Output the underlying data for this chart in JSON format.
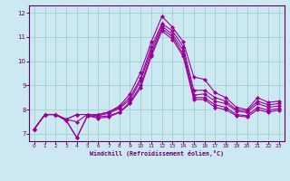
{
  "xlabel": "Windchill (Refroidissement éolien,°C)",
  "bg_color": "#cce8f0",
  "line_color": "#990099",
  "grid_color": "#99cccc",
  "axis_color": "#660066",
  "xlim": [
    -0.5,
    23.5
  ],
  "ylim": [
    6.7,
    12.3
  ],
  "xticks": [
    0,
    1,
    2,
    3,
    4,
    5,
    6,
    7,
    8,
    9,
    10,
    11,
    12,
    13,
    14,
    15,
    16,
    17,
    18,
    19,
    20,
    21,
    22,
    23
  ],
  "yticks": [
    7,
    8,
    9,
    10,
    11,
    12
  ],
  "series": [
    [
      7.2,
      7.8,
      7.8,
      7.6,
      7.5,
      7.8,
      7.8,
      7.9,
      8.15,
      8.65,
      9.55,
      10.8,
      11.85,
      11.4,
      10.8,
      9.35,
      9.25,
      8.7,
      8.5,
      8.1,
      8.0,
      8.5,
      8.3,
      8.35
    ],
    [
      7.2,
      7.8,
      7.8,
      7.6,
      7.8,
      7.8,
      7.8,
      7.9,
      8.1,
      8.5,
      9.3,
      10.6,
      11.55,
      11.25,
      10.6,
      8.8,
      8.8,
      8.5,
      8.35,
      8.0,
      7.95,
      8.35,
      8.2,
      8.25
    ],
    [
      7.2,
      7.8,
      7.8,
      7.6,
      7.8,
      7.8,
      7.75,
      7.85,
      8.05,
      8.4,
      9.2,
      10.45,
      11.45,
      11.1,
      10.45,
      8.6,
      8.65,
      8.35,
      8.25,
      7.95,
      7.88,
      8.25,
      8.1,
      8.15
    ],
    [
      7.2,
      7.8,
      7.8,
      7.55,
      6.85,
      7.75,
      7.7,
      7.75,
      7.9,
      8.3,
      9.0,
      10.3,
      11.35,
      11.0,
      10.3,
      8.5,
      8.5,
      8.2,
      8.1,
      7.8,
      7.75,
      8.1,
      7.98,
      8.05
    ],
    [
      7.2,
      7.8,
      7.8,
      7.55,
      6.85,
      7.75,
      7.65,
      7.7,
      7.88,
      8.25,
      8.9,
      10.2,
      11.25,
      10.9,
      10.2,
      8.42,
      8.42,
      8.1,
      8.0,
      7.75,
      7.7,
      8.0,
      7.9,
      7.98
    ]
  ]
}
